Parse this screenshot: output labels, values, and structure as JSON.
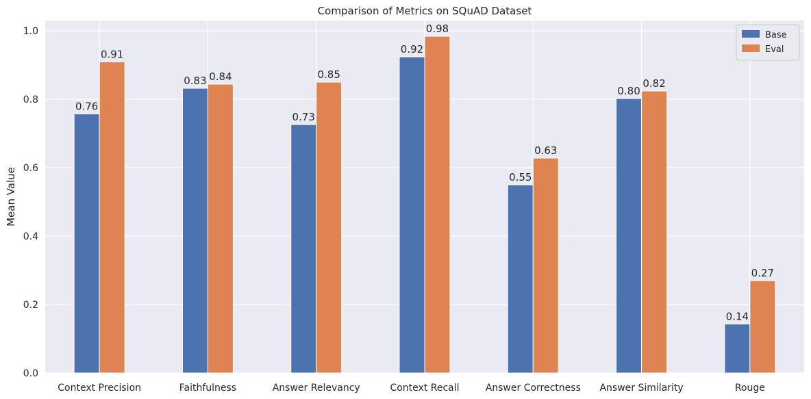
{
  "chart_data": {
    "type": "bar",
    "title": "Comparison of Metrics on SQuAD Dataset",
    "xlabel": "",
    "ylabel": "Mean Value",
    "ylim": [
      0,
      1.03
    ],
    "yticks": [
      "0.0",
      "0.2",
      "0.4",
      "0.6",
      "0.8",
      "1.0"
    ],
    "ytick_values": [
      0,
      0.2,
      0.4,
      0.6,
      0.8,
      1.0
    ],
    "grid": true,
    "legend_position": "top-right",
    "categories": [
      "Context Precision",
      "Faithfulness",
      "Answer Relevancy",
      "Context Recall",
      "Answer Correctness",
      "Answer Similarity",
      "Rouge"
    ],
    "series": [
      {
        "name": "Base",
        "color": "#4c72b0",
        "values": [
          0.757,
          0.832,
          0.726,
          0.924,
          0.55,
          0.802,
          0.143
        ],
        "labels": [
          "0.76",
          "0.83",
          "0.73",
          "0.92",
          "0.55",
          "0.80",
          "0.14"
        ]
      },
      {
        "name": "Eval",
        "color": "#dd8452",
        "values": [
          0.909,
          0.844,
          0.85,
          0.984,
          0.628,
          0.824,
          0.27
        ],
        "labels": [
          "0.91",
          "0.84",
          "0.85",
          "0.98",
          "0.63",
          "0.82",
          "0.27"
        ]
      }
    ],
    "background_color": "#eaeaf2",
    "grid_color": "#ffffff"
  }
}
